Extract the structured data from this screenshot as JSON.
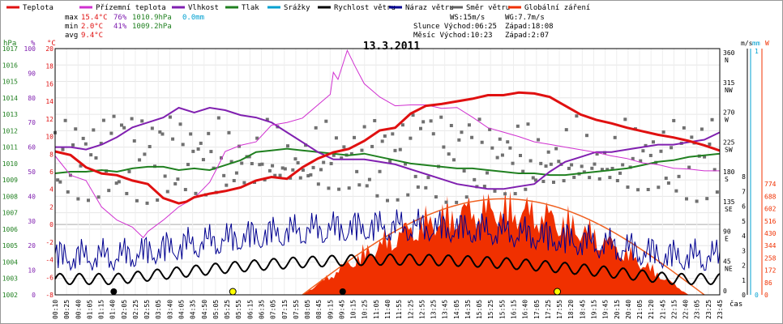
{
  "chart_data": {
    "type": "line",
    "title": "13.3.2011",
    "xlabel": "čas",
    "legend": [
      {
        "name": "Teplota",
        "color": "#e01010"
      },
      {
        "name": "Přízemní teplota",
        "color": "#d030d0"
      },
      {
        "name": "Vlhkost",
        "color": "#8020b0"
      },
      {
        "name": "Tlak",
        "color": "#208020"
      },
      {
        "name": "Srážky",
        "color": "#00a0d0"
      },
      {
        "name": "Rychlost větru",
        "color": "#000000"
      },
      {
        "name": "Náraz větru",
        "color": "#000090"
      },
      {
        "name": "Směr větru",
        "color": "#606060"
      },
      {
        "name": "Globální záření",
        "color": "#f03000"
      }
    ],
    "stats": {
      "max": {
        "label": "max",
        "temp": "15.4°C",
        "hum": "76%",
        "press": "1010.9hPa",
        "rain": "0.0mm"
      },
      "min": {
        "label": "min",
        "temp": "2.0°C",
        "hum": "41%",
        "press": "1009.2hPa"
      },
      "avg": {
        "label": "avg",
        "temp": "9.4°C"
      }
    },
    "info": {
      "ws": "WS:15m/s",
      "wg": "WG:7.7m/s",
      "slunce": "Slunce Východ:06:25",
      "slunce_zapad": "Západ:18:08",
      "mesic": "Měsíc Východ:10:23",
      "mesic_zapad": "Západ:2:07"
    },
    "axes": {
      "hpa": {
        "label": "hPa",
        "ticks": [
          "1002",
          "1003",
          "1004",
          "1005",
          "1006",
          "1007",
          "1008",
          "1009",
          "1010",
          "1011",
          "1012",
          "1013",
          "1014",
          "1015",
          "1016",
          "1017"
        ]
      },
      "percent": {
        "label": "%",
        "ticks": [
          "0",
          "10",
          "20",
          "30",
          "40",
          "50",
          "60",
          "70",
          "80",
          "90",
          "100"
        ]
      },
      "celsius": {
        "label": "°C",
        "ticks": [
          "-8",
          "-6",
          "-4",
          "-2",
          "0",
          "2",
          "4",
          "6",
          "8",
          "10",
          "12",
          "14",
          "16",
          "18",
          "20"
        ]
      },
      "dir": {
        "label": "",
        "ticks": [
          {
            "deg": "360",
            "dir": "N"
          },
          {
            "deg": "315",
            "dir": "NW"
          },
          {
            "deg": "270",
            "dir": "W"
          },
          {
            "deg": "225",
            "dir": "SW"
          },
          {
            "deg": "180",
            "dir": "S"
          },
          {
            "deg": "135",
            "dir": "SE"
          },
          {
            "deg": "90",
            "dir": "E"
          },
          {
            "deg": "45",
            "dir": "NE"
          },
          {
            "deg": "0",
            "dir": ""
          }
        ]
      },
      "ms": {
        "label": "m/s",
        "ticks": [
          "0",
          "1",
          "2",
          "3",
          "4",
          "5",
          "6",
          "7",
          "8"
        ]
      },
      "mm": {
        "label": "mm",
        "ticks": [
          "0",
          "1"
        ]
      },
      "w": {
        "label": "W",
        "ticks": [
          "0",
          "86",
          "172",
          "258",
          "344",
          "430",
          "516",
          "602",
          "688",
          "774"
        ]
      }
    },
    "x_ticks": [
      "00:10",
      "00:25",
      "00:40",
      "01:05",
      "01:15",
      "01:40",
      "02:05",
      "02:25",
      "02:55",
      "03:05",
      "03:40",
      "04:05",
      "04:35",
      "04:50",
      "05:05",
      "05:25",
      "05:55",
      "06:15",
      "06:35",
      "07:05",
      "07:15",
      "07:55",
      "08:05",
      "08:45",
      "09:15",
      "09:45",
      "10:15",
      "10:25",
      "11:05",
      "11:40",
      "11:55",
      "12:25",
      "12:55",
      "13:25",
      "13:45",
      "14:05",
      "14:35",
      "15:05",
      "15:25",
      "15:55",
      "16:15",
      "16:40",
      "17:05",
      "17:25",
      "17:55",
      "18:20",
      "18:45",
      "19:15",
      "19:45",
      "20:15",
      "20:40",
      "21:05",
      "21:20",
      "21:45",
      "22:15",
      "22:40",
      "23:05",
      "23:25",
      "23:45"
    ],
    "series_temp": [
      [
        0,
        8.3
      ],
      [
        1,
        7.9
      ],
      [
        2,
        6.5
      ],
      [
        3,
        5.8
      ],
      [
        4,
        5.6
      ],
      [
        5,
        5.0
      ],
      [
        6,
        4.6
      ],
      [
        7,
        3.0
      ],
      [
        8,
        2.4
      ],
      [
        8.5,
        2.6
      ],
      [
        9,
        3.1
      ],
      [
        10,
        3.5
      ],
      [
        11,
        3.8
      ],
      [
        12,
        4.2
      ],
      [
        13,
        5.0
      ],
      [
        14,
        5.4
      ],
      [
        15,
        5.2
      ],
      [
        16,
        6.5
      ],
      [
        17,
        7.5
      ],
      [
        18,
        8.2
      ],
      [
        19,
        8.6
      ],
      [
        20,
        9.5
      ],
      [
        21,
        10.7
      ],
      [
        22,
        11.0
      ],
      [
        23,
        12.6
      ],
      [
        24,
        13.5
      ],
      [
        25,
        13.7
      ],
      [
        26,
        14.0
      ],
      [
        27,
        14.3
      ],
      [
        28,
        14.7
      ],
      [
        29,
        14.7
      ],
      [
        30,
        15.0
      ],
      [
        31,
        14.9
      ],
      [
        32,
        14.5
      ],
      [
        33,
        13.5
      ],
      [
        34,
        12.5
      ],
      [
        35,
        11.9
      ],
      [
        36,
        11.5
      ],
      [
        37,
        11.0
      ],
      [
        38,
        10.6
      ],
      [
        39,
        10.2
      ],
      [
        40,
        9.9
      ],
      [
        41,
        9.5
      ],
      [
        42,
        9.0
      ],
      [
        43,
        8.4
      ]
    ],
    "series_ground": [
      [
        0,
        7.8
      ],
      [
        1,
        5.6
      ],
      [
        2,
        5.0
      ],
      [
        3,
        2.0
      ],
      [
        4,
        0.5
      ],
      [
        5,
        -0.3
      ],
      [
        5.7,
        -1.5
      ],
      [
        6,
        -0.8
      ],
      [
        7,
        0.5
      ],
      [
        8,
        2.0
      ],
      [
        9,
        3.0
      ],
      [
        10,
        4.8
      ],
      [
        10.5,
        6.5
      ],
      [
        11,
        8.3
      ],
      [
        12,
        9.0
      ],
      [
        13,
        9.4
      ],
      [
        14,
        11.3
      ],
      [
        15,
        11.6
      ],
      [
        16,
        12.1
      ],
      [
        17,
        13.6
      ],
      [
        17.8,
        14.8
      ],
      [
        18,
        17.3
      ],
      [
        18.3,
        16.5
      ],
      [
        18.9,
        19.8
      ],
      [
        19.4,
        18.0
      ],
      [
        20,
        16.0
      ],
      [
        21,
        14.5
      ],
      [
        22,
        13.5
      ],
      [
        23,
        13.6
      ],
      [
        24,
        13.6
      ],
      [
        25,
        13.2
      ],
      [
        26,
        13.3
      ],
      [
        27,
        12.2
      ],
      [
        28,
        11.0
      ],
      [
        29,
        10.5
      ],
      [
        30,
        10.0
      ],
      [
        31,
        9.4
      ],
      [
        32,
        9.1
      ],
      [
        33,
        8.8
      ],
      [
        34,
        8.5
      ],
      [
        35,
        8.2
      ],
      [
        36,
        7.8
      ],
      [
        37,
        7.5
      ],
      [
        38,
        7.0
      ],
      [
        39,
        6.8
      ],
      [
        40,
        6.4
      ],
      [
        41,
        6.3
      ],
      [
        42,
        6.1
      ],
      [
        43,
        6.1
      ]
    ],
    "series_humidity": [
      [
        0,
        60
      ],
      [
        1,
        60
      ],
      [
        2,
        59
      ],
      [
        3,
        61
      ],
      [
        4,
        64
      ],
      [
        5,
        68
      ],
      [
        6,
        70
      ],
      [
        7,
        72
      ],
      [
        8,
        76
      ],
      [
        9,
        74
      ],
      [
        10,
        76
      ],
      [
        11,
        75
      ],
      [
        12,
        73
      ],
      [
        13,
        72
      ],
      [
        14,
        70
      ],
      [
        15,
        66
      ],
      [
        16,
        62
      ],
      [
        17,
        58
      ],
      [
        18,
        55
      ],
      [
        19,
        55
      ],
      [
        20,
        55
      ],
      [
        21,
        54
      ],
      [
        22,
        53
      ],
      [
        23,
        51
      ],
      [
        24,
        49
      ],
      [
        25,
        47
      ],
      [
        26,
        45
      ],
      [
        27,
        44
      ],
      [
        28,
        43
      ],
      [
        29,
        43
      ],
      [
        30,
        44
      ],
      [
        31,
        45
      ],
      [
        32,
        50
      ],
      [
        33,
        54
      ],
      [
        34,
        56
      ],
      [
        35,
        58
      ],
      [
        36,
        58
      ],
      [
        37,
        59
      ],
      [
        38,
        60
      ],
      [
        39,
        61
      ],
      [
        40,
        61
      ],
      [
        41,
        62
      ],
      [
        42,
        63
      ],
      [
        43,
        66
      ]
    ],
    "series_pressure": [
      [
        0,
        1009.4
      ],
      [
        1,
        1009.5
      ],
      [
        2,
        1009.5
      ],
      [
        3,
        1009.6
      ],
      [
        4,
        1009.5
      ],
      [
        5,
        1009.7
      ],
      [
        6,
        1009.8
      ],
      [
        7,
        1009.8
      ],
      [
        8,
        1009.6
      ],
      [
        9,
        1009.7
      ],
      [
        10,
        1009.6
      ],
      [
        11,
        1009.9
      ],
      [
        12,
        1010.2
      ],
      [
        13,
        1010.7
      ],
      [
        14,
        1010.8
      ],
      [
        15,
        1010.9
      ],
      [
        16,
        1010.8
      ],
      [
        17,
        1010.7
      ],
      [
        18,
        1010.6
      ],
      [
        19,
        1010.5
      ],
      [
        20,
        1010.6
      ],
      [
        21,
        1010.4
      ],
      [
        22,
        1010.2
      ],
      [
        23,
        1010.0
      ],
      [
        24,
        1009.9
      ],
      [
        25,
        1009.8
      ],
      [
        26,
        1009.7
      ],
      [
        27,
        1009.7
      ],
      [
        28,
        1009.6
      ],
      [
        29,
        1009.5
      ],
      [
        30,
        1009.4
      ],
      [
        31,
        1009.4
      ],
      [
        32,
        1009.3
      ],
      [
        33,
        1009.3
      ],
      [
        34,
        1009.4
      ],
      [
        35,
        1009.5
      ],
      [
        36,
        1009.6
      ],
      [
        37,
        1009.7
      ],
      [
        38,
        1009.9
      ],
      [
        39,
        1010.1
      ],
      [
        40,
        1010.2
      ],
      [
        41,
        1010.4
      ],
      [
        42,
        1010.5
      ],
      [
        43,
        1010.6
      ]
    ],
    "series_radiation_peak": 774,
    "sun_markers": [
      {
        "x": "06:25"
      },
      {
        "x": "18:08"
      }
    ],
    "moon_markers": [
      {
        "x": "02:07"
      },
      {
        "x": "10:23"
      }
    ]
  }
}
